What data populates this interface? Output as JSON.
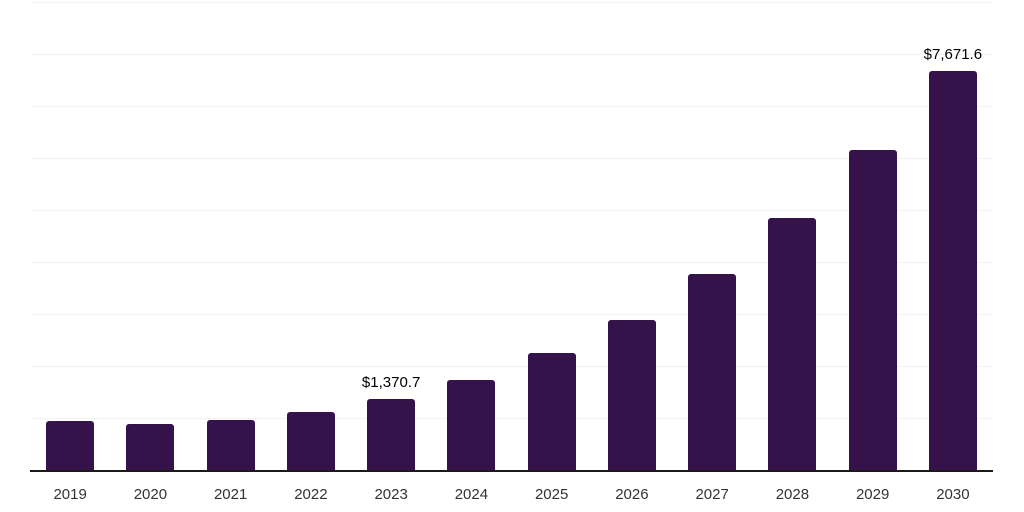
{
  "chart_data": {
    "type": "bar",
    "title": "",
    "xlabel": "",
    "ylabel": "",
    "categories": [
      "2019",
      "2020",
      "2021",
      "2022",
      "2023",
      "2024",
      "2025",
      "2026",
      "2027",
      "2028",
      "2029",
      "2030"
    ],
    "values": [
      945,
      885,
      960,
      1110,
      1370.7,
      1730,
      2250,
      2890,
      3770,
      4840,
      6150,
      7671.6
    ],
    "bar_labels": [
      "",
      "",
      "",
      "",
      "$1,370.7",
      "",
      "",
      "",
      "",
      "",
      "",
      "$7,671.6"
    ],
    "ylim": [
      0,
      9000
    ],
    "gridline_step": 1000,
    "grid": true,
    "legend": false,
    "colors": {
      "bar": "#35124A",
      "gridline": "#f2f2f2",
      "axis_line": "#1a1a1a",
      "tick_label": "#333333",
      "value_label": "#000000",
      "background": "#ffffff"
    }
  }
}
